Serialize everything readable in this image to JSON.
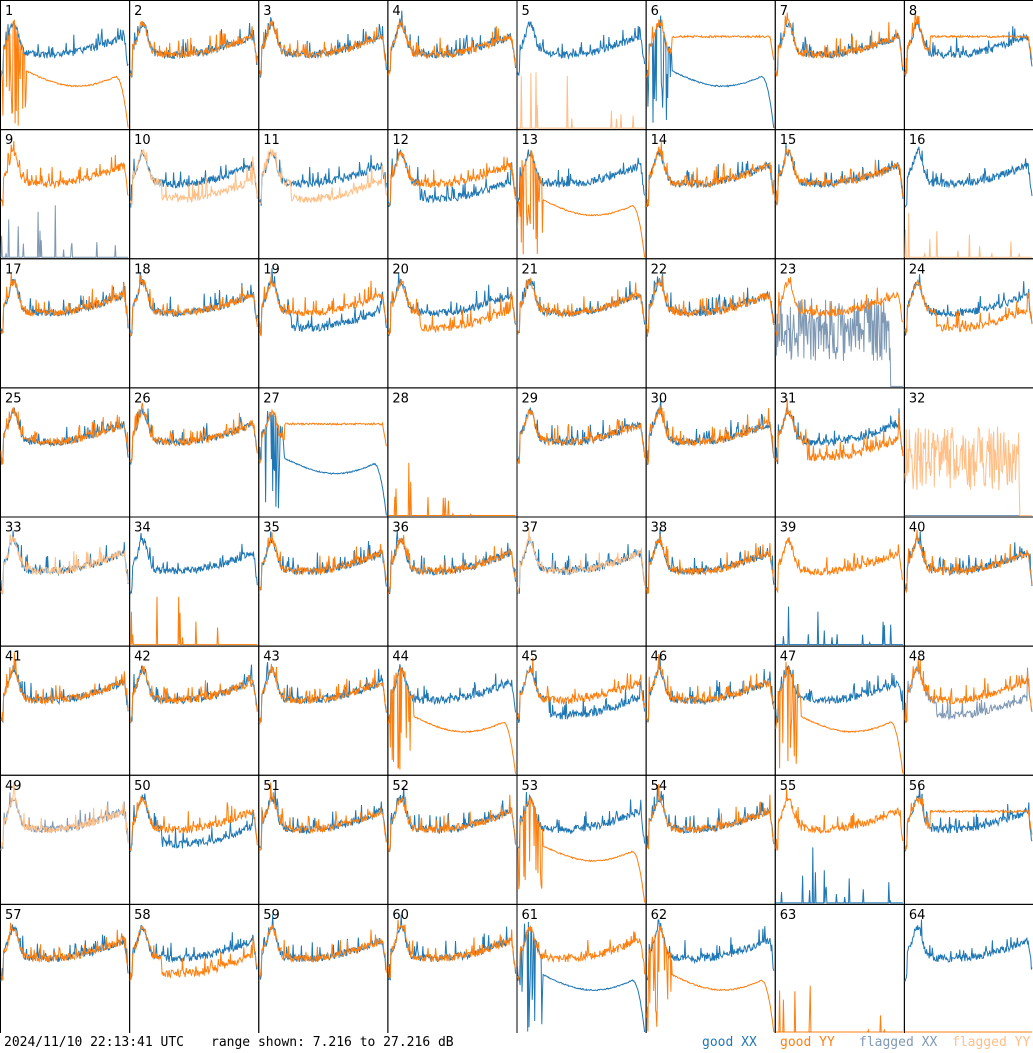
{
  "header": {
    "timestamp": "2024/11/10 22:13:41 UTC",
    "range_text": "range shown: 7.216 to 27.216 dB"
  },
  "legend": {
    "good_xx": "good XX",
    "good_yy": "good YY",
    "flagged_xx": "flagged XX",
    "flagged_yy": "flagged YY"
  },
  "colors": {
    "good_xx": "#1f77b4",
    "good_yy": "#ff7f0e",
    "flagged_xx": "#7f99b4",
    "flagged_yy": "#ffbf87",
    "grid": "#000000"
  },
  "chart_data": {
    "type": "line",
    "grid": "8x8 small multiples",
    "ylim": [
      7.216,
      27.216
    ],
    "yunit": "dB",
    "panels": [
      {
        "id": 1,
        "xx": "good",
        "yy": "good",
        "xx_shape": "normal",
        "yy_shape": "dropout"
      },
      {
        "id": 2,
        "xx": "good",
        "yy": "good",
        "xx_shape": "normal",
        "yy_shape": "normal"
      },
      {
        "id": 3,
        "xx": "good",
        "yy": "good",
        "xx_shape": "normal",
        "yy_shape": "normal"
      },
      {
        "id": 4,
        "xx": "good",
        "yy": "good",
        "xx_shape": "normal",
        "yy_shape": "normal"
      },
      {
        "id": 5,
        "xx": "good",
        "yy": "flagged",
        "xx_shape": "normal",
        "yy_shape": "spiky"
      },
      {
        "id": 6,
        "xx": "good",
        "yy": "good",
        "xx_shape": "dropout",
        "yy_shape": "flat-high"
      },
      {
        "id": 7,
        "xx": "good",
        "yy": "good",
        "xx_shape": "normal",
        "yy_shape": "normal"
      },
      {
        "id": 8,
        "xx": "good",
        "yy": "good",
        "xx_shape": "normal",
        "yy_shape": "flat-high"
      },
      {
        "id": 9,
        "xx": "flagged",
        "yy": "good",
        "xx_shape": "spiky",
        "yy_shape": "normal"
      },
      {
        "id": 10,
        "xx": "good",
        "yy": "flagged",
        "xx_shape": "normal",
        "yy_shape": "low"
      },
      {
        "id": 11,
        "xx": "good",
        "yy": "flagged",
        "xx_shape": "normal",
        "yy_shape": "low"
      },
      {
        "id": 12,
        "xx": "good",
        "yy": "good",
        "xx_shape": "low",
        "yy_shape": "normal"
      },
      {
        "id": 13,
        "xx": "good",
        "yy": "good",
        "xx_shape": "normal",
        "yy_shape": "dropout"
      },
      {
        "id": 14,
        "xx": "good",
        "yy": "good",
        "xx_shape": "normal",
        "yy_shape": "normal"
      },
      {
        "id": 15,
        "xx": "good",
        "yy": "good",
        "xx_shape": "normal",
        "yy_shape": "normal"
      },
      {
        "id": 16,
        "xx": "good",
        "yy": "flagged",
        "xx_shape": "normal",
        "yy_shape": "spiky"
      },
      {
        "id": 17,
        "xx": "good",
        "yy": "good",
        "xx_shape": "normal",
        "yy_shape": "normal"
      },
      {
        "id": 18,
        "xx": "good",
        "yy": "good",
        "xx_shape": "normal",
        "yy_shape": "normal"
      },
      {
        "id": 19,
        "xx": "good",
        "yy": "good",
        "xx_shape": "low",
        "yy_shape": "normal"
      },
      {
        "id": 20,
        "xx": "good",
        "yy": "good",
        "xx_shape": "normal",
        "yy_shape": "low"
      },
      {
        "id": 21,
        "xx": "good",
        "yy": "good",
        "xx_shape": "normal",
        "yy_shape": "normal"
      },
      {
        "id": 22,
        "xx": "good",
        "yy": "good",
        "xx_shape": "normal",
        "yy_shape": "normal"
      },
      {
        "id": 23,
        "xx": "flagged",
        "yy": "good",
        "xx_shape": "noisy",
        "yy_shape": "normal"
      },
      {
        "id": 24,
        "xx": "good",
        "yy": "good",
        "xx_shape": "normal",
        "yy_shape": "low"
      },
      {
        "id": 25,
        "xx": "good",
        "yy": "good",
        "xx_shape": "normal",
        "yy_shape": "normal"
      },
      {
        "id": 26,
        "xx": "good",
        "yy": "good",
        "xx_shape": "normal",
        "yy_shape": "normal"
      },
      {
        "id": 27,
        "xx": "good",
        "yy": "good",
        "xx_shape": "dropout",
        "yy_shape": "flat-high"
      },
      {
        "id": 28,
        "xx": "flagged",
        "yy": "good",
        "xx_shape": "none",
        "yy_shape": "spiky"
      },
      {
        "id": 29,
        "xx": "good",
        "yy": "good",
        "xx_shape": "normal",
        "yy_shape": "normal"
      },
      {
        "id": 30,
        "xx": "good",
        "yy": "good",
        "xx_shape": "normal",
        "yy_shape": "normal"
      },
      {
        "id": 31,
        "xx": "good",
        "yy": "good",
        "xx_shape": "normal",
        "yy_shape": "low"
      },
      {
        "id": 32,
        "xx": "flagged",
        "yy": "flagged",
        "xx_shape": "none",
        "yy_shape": "noisy"
      },
      {
        "id": 33,
        "xx": "good",
        "yy": "flagged",
        "xx_shape": "normal",
        "yy_shape": "normal"
      },
      {
        "id": 34,
        "xx": "good",
        "yy": "good",
        "xx_shape": "normal",
        "yy_shape": "spiky"
      },
      {
        "id": 35,
        "xx": "good",
        "yy": "good",
        "xx_shape": "normal",
        "yy_shape": "normal"
      },
      {
        "id": 36,
        "xx": "good",
        "yy": "good",
        "xx_shape": "normal",
        "yy_shape": "normal"
      },
      {
        "id": 37,
        "xx": "good",
        "yy": "flagged",
        "xx_shape": "normal",
        "yy_shape": "normal"
      },
      {
        "id": 38,
        "xx": "good",
        "yy": "good",
        "xx_shape": "normal",
        "yy_shape": "normal"
      },
      {
        "id": 39,
        "xx": "good",
        "yy": "good",
        "xx_shape": "spiky",
        "yy_shape": "normal"
      },
      {
        "id": 40,
        "xx": "good",
        "yy": "good",
        "xx_shape": "normal",
        "yy_shape": "normal"
      },
      {
        "id": 41,
        "xx": "good",
        "yy": "good",
        "xx_shape": "normal",
        "yy_shape": "normal"
      },
      {
        "id": 42,
        "xx": "good",
        "yy": "good",
        "xx_shape": "normal",
        "yy_shape": "normal"
      },
      {
        "id": 43,
        "xx": "good",
        "yy": "good",
        "xx_shape": "normal",
        "yy_shape": "normal"
      },
      {
        "id": 44,
        "xx": "good",
        "yy": "good",
        "xx_shape": "normal",
        "yy_shape": "dropout"
      },
      {
        "id": 45,
        "xx": "good",
        "yy": "good",
        "xx_shape": "low",
        "yy_shape": "normal"
      },
      {
        "id": 46,
        "xx": "good",
        "yy": "good",
        "xx_shape": "normal",
        "yy_shape": "normal"
      },
      {
        "id": 47,
        "xx": "good",
        "yy": "good",
        "xx_shape": "normal",
        "yy_shape": "dropout"
      },
      {
        "id": 48,
        "xx": "flagged",
        "yy": "good",
        "xx_shape": "low",
        "yy_shape": "normal"
      },
      {
        "id": 49,
        "xx": "flagged",
        "yy": "flagged",
        "xx_shape": "normal",
        "yy_shape": "normal"
      },
      {
        "id": 50,
        "xx": "good",
        "yy": "good",
        "xx_shape": "low",
        "yy_shape": "normal"
      },
      {
        "id": 51,
        "xx": "good",
        "yy": "good",
        "xx_shape": "normal",
        "yy_shape": "normal"
      },
      {
        "id": 52,
        "xx": "good",
        "yy": "good",
        "xx_shape": "normal",
        "yy_shape": "normal"
      },
      {
        "id": 53,
        "xx": "good",
        "yy": "good",
        "xx_shape": "normal",
        "yy_shape": "dropout"
      },
      {
        "id": 54,
        "xx": "good",
        "yy": "good",
        "xx_shape": "normal",
        "yy_shape": "normal"
      },
      {
        "id": 55,
        "xx": "good",
        "yy": "good",
        "xx_shape": "spiky",
        "yy_shape": "normal"
      },
      {
        "id": 56,
        "xx": "good",
        "yy": "good",
        "xx_shape": "normal",
        "yy_shape": "flat-high"
      },
      {
        "id": 57,
        "xx": "good",
        "yy": "good",
        "xx_shape": "normal",
        "yy_shape": "normal"
      },
      {
        "id": 58,
        "xx": "good",
        "yy": "good",
        "xx_shape": "normal",
        "yy_shape": "low"
      },
      {
        "id": 59,
        "xx": "good",
        "yy": "good",
        "xx_shape": "normal",
        "yy_shape": "normal"
      },
      {
        "id": 60,
        "xx": "good",
        "yy": "good",
        "xx_shape": "normal",
        "yy_shape": "normal"
      },
      {
        "id": 61,
        "xx": "good",
        "yy": "good",
        "xx_shape": "dropout",
        "yy_shape": "normal"
      },
      {
        "id": 62,
        "xx": "good",
        "yy": "good",
        "xx_shape": "normal",
        "yy_shape": "dropout"
      },
      {
        "id": 63,
        "xx": "good",
        "yy": "good",
        "xx_shape": "none",
        "yy_shape": "spiky"
      },
      {
        "id": 64,
        "xx": "good",
        "yy": "good",
        "xx_shape": "normal",
        "yy_shape": "none"
      }
    ]
  }
}
